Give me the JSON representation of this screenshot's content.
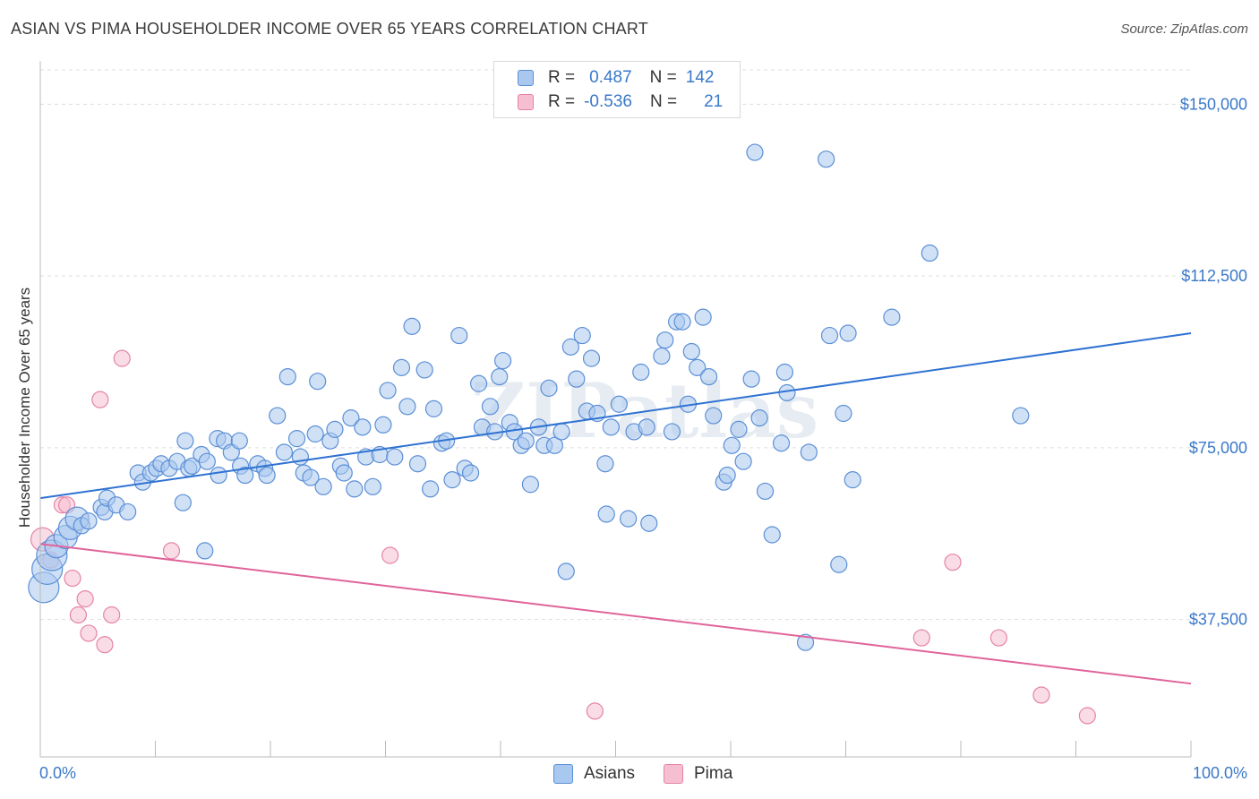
{
  "title": "ASIAN VS PIMA HOUSEHOLDER INCOME OVER 65 YEARS CORRELATION CHART",
  "source": "Source: ZipAtlas.com",
  "watermark": "ZIPatlas",
  "legend": {
    "rows": [
      {
        "r_label": "R =",
        "r_value": "0.487",
        "n_label": "N =",
        "n_value": "142"
      },
      {
        "r_label": "R =",
        "r_value": "-0.536",
        "n_label": "N =",
        "n_value": "21"
      }
    ]
  },
  "bottom_legend": [
    "Asians",
    "Pima"
  ],
  "colors": {
    "asian_fill": "#a9c8ef",
    "asian_stroke": "#5b8fd6",
    "asian_line": "#2f72d2",
    "pima_fill": "#f6bfd1",
    "pima_stroke": "#e584a6",
    "pima_line": "#e0649a",
    "axis_text": "#3a78c9",
    "grid": "#dddddd"
  },
  "chart_data": {
    "type": "scatter",
    "title": "ASIAN VS PIMA HOUSEHOLDER INCOME OVER 65 YEARS CORRELATION CHART",
    "xlabel": "",
    "ylabel": "Householder Income Over 65 years",
    "xlim": [
      0,
      100
    ],
    "ylim": [
      7500,
      157500
    ],
    "x_tick_labels": [
      "0.0%",
      "100.0%"
    ],
    "y_ticks": [
      37500,
      75000,
      112500,
      150000
    ],
    "y_tick_labels": [
      "$37,500",
      "$75,000",
      "$112,500",
      "$150,000"
    ],
    "grid": true,
    "legend_position": "top-center",
    "series": [
      {
        "name": "Asians",
        "r": 0.487,
        "n": 142,
        "trend": [
          [
            0,
            64000
          ],
          [
            100,
            100000
          ]
        ],
        "points": [
          [
            0.3,
            44500,
            3
          ],
          [
            0.6,
            48500,
            3
          ],
          [
            1.0,
            51500,
            3
          ],
          [
            1.4,
            53500,
            2
          ],
          [
            2.2,
            55500,
            2
          ],
          [
            2.6,
            57500,
            2
          ],
          [
            3.2,
            59500,
            2
          ],
          [
            3.6,
            58000,
            1
          ],
          [
            4.2,
            59000,
            1
          ],
          [
            5.3,
            62000,
            1
          ],
          [
            5.6,
            61000,
            1
          ],
          [
            5.8,
            64000,
            1
          ],
          [
            6.6,
            62500,
            1
          ],
          [
            7.6,
            61000,
            1
          ],
          [
            8.5,
            69500,
            1
          ],
          [
            8.9,
            67500,
            1
          ],
          [
            9.6,
            69500,
            1
          ],
          [
            10.1,
            70500,
            1
          ],
          [
            10.5,
            71500,
            1
          ],
          [
            11.2,
            70500,
            1
          ],
          [
            11.9,
            72000,
            1
          ],
          [
            12.4,
            63000,
            1
          ],
          [
            12.6,
            76500,
            1
          ],
          [
            12.9,
            70500,
            1
          ],
          [
            13.2,
            71000,
            1
          ],
          [
            14.0,
            73500,
            1
          ],
          [
            14.5,
            72000,
            1
          ],
          [
            14.3,
            52500,
            1
          ],
          [
            15.5,
            69000,
            1
          ],
          [
            15.4,
            77000,
            1
          ],
          [
            16.0,
            76500,
            1
          ],
          [
            16.6,
            74000,
            1
          ],
          [
            17.4,
            71000,
            1
          ],
          [
            17.3,
            76500,
            1
          ],
          [
            17.8,
            69000,
            1
          ],
          [
            18.9,
            71500,
            1
          ],
          [
            19.5,
            70500,
            1
          ],
          [
            19.7,
            69000,
            1
          ],
          [
            20.6,
            82000,
            1
          ],
          [
            21.2,
            74000,
            1
          ],
          [
            21.5,
            90500,
            1
          ],
          [
            22.3,
            77000,
            1
          ],
          [
            22.6,
            73000,
            1
          ],
          [
            22.9,
            69500,
            1
          ],
          [
            23.5,
            68500,
            1
          ],
          [
            23.9,
            78000,
            1
          ],
          [
            24.1,
            89500,
            1
          ],
          [
            24.6,
            66500,
            1
          ],
          [
            25.2,
            76500,
            1
          ],
          [
            25.6,
            79000,
            1
          ],
          [
            26.1,
            71000,
            1
          ],
          [
            26.4,
            69500,
            1
          ],
          [
            27.0,
            81500,
            1
          ],
          [
            27.3,
            66000,
            1
          ],
          [
            28.0,
            79500,
            1
          ],
          [
            28.3,
            73000,
            1
          ],
          [
            28.9,
            66500,
            1
          ],
          [
            29.5,
            73500,
            1
          ],
          [
            29.8,
            80000,
            1
          ],
          [
            30.2,
            87500,
            1
          ],
          [
            30.8,
            73000,
            1
          ],
          [
            31.4,
            92500,
            1
          ],
          [
            31.9,
            84000,
            1
          ],
          [
            32.3,
            101500,
            1
          ],
          [
            32.8,
            71500,
            1
          ],
          [
            33.4,
            92000,
            1
          ],
          [
            33.9,
            66000,
            1
          ],
          [
            34.2,
            83500,
            1
          ],
          [
            34.9,
            76000,
            1
          ],
          [
            35.3,
            76500,
            1
          ],
          [
            35.8,
            68000,
            1
          ],
          [
            36.4,
            99500,
            1
          ],
          [
            36.9,
            70500,
            1
          ],
          [
            37.4,
            69500,
            1
          ],
          [
            38.1,
            89000,
            1
          ],
          [
            38.4,
            79500,
            1
          ],
          [
            39.1,
            84000,
            1
          ],
          [
            39.5,
            78500,
            1
          ],
          [
            39.9,
            90500,
            1
          ],
          [
            40.2,
            94000,
            1
          ],
          [
            40.8,
            80500,
            1
          ],
          [
            41.2,
            78500,
            1
          ],
          [
            41.8,
            75500,
            1
          ],
          [
            42.2,
            76500,
            1
          ],
          [
            42.6,
            67000,
            1
          ],
          [
            43.3,
            79500,
            1
          ],
          [
            43.8,
            75500,
            1
          ],
          [
            44.2,
            88000,
            1
          ],
          [
            44.7,
            75500,
            1
          ],
          [
            45.3,
            78500,
            1
          ],
          [
            45.7,
            48000,
            1
          ],
          [
            46.1,
            97000,
            1
          ],
          [
            46.6,
            90000,
            1
          ],
          [
            47.1,
            99500,
            1
          ],
          [
            47.5,
            83000,
            1
          ],
          [
            47.9,
            94500,
            1
          ],
          [
            48.4,
            82500,
            1
          ],
          [
            49.1,
            71500,
            1
          ],
          [
            49.6,
            79500,
            1
          ],
          [
            49.2,
            60500,
            1
          ],
          [
            50.3,
            84500,
            1
          ],
          [
            51.1,
            59500,
            1
          ],
          [
            51.6,
            78500,
            1
          ],
          [
            52.2,
            91500,
            1
          ],
          [
            52.7,
            79500,
            1
          ],
          [
            52.9,
            58500,
            1
          ],
          [
            54.0,
            95000,
            1
          ],
          [
            54.3,
            98500,
            1
          ],
          [
            54.9,
            78500,
            1
          ],
          [
            55.3,
            102500,
            1
          ],
          [
            55.8,
            102500,
            1
          ],
          [
            56.3,
            84500,
            1
          ],
          [
            56.6,
            96000,
            1
          ],
          [
            57.1,
            92500,
            1
          ],
          [
            57.6,
            103500,
            1
          ],
          [
            58.1,
            90500,
            1
          ],
          [
            58.5,
            82000,
            1
          ],
          [
            59.4,
            67500,
            1
          ],
          [
            59.7,
            69000,
            1
          ],
          [
            60.1,
            75500,
            1
          ],
          [
            60.7,
            79000,
            1
          ],
          [
            61.1,
            72000,
            1
          ],
          [
            61.8,
            90000,
            1
          ],
          [
            62.1,
            139500,
            1
          ],
          [
            62.5,
            81500,
            1
          ],
          [
            63.0,
            65500,
            1
          ],
          [
            63.6,
            56000,
            1
          ],
          [
            64.4,
            76000,
            1
          ],
          [
            64.7,
            91500,
            1
          ],
          [
            64.9,
            87000,
            1
          ],
          [
            66.8,
            74000,
            1
          ],
          [
            68.3,
            138000,
            1
          ],
          [
            68.6,
            99500,
            1
          ],
          [
            69.4,
            49500,
            1
          ],
          [
            69.8,
            82500,
            1
          ],
          [
            70.2,
            100000,
            1
          ],
          [
            70.6,
            68000,
            1
          ],
          [
            66.5,
            32500,
            1
          ],
          [
            74.0,
            103500,
            1
          ],
          [
            77.3,
            117500,
            1
          ],
          [
            85.2,
            82000,
            1
          ]
        ]
      },
      {
        "name": "Pima",
        "r": -0.536,
        "n": 21,
        "trend": [
          [
            0,
            54000
          ],
          [
            100,
            23500
          ]
        ],
        "points": [
          [
            0.2,
            55000,
            2
          ],
          [
            0.9,
            50500,
            1
          ],
          [
            1.9,
            62500,
            1
          ],
          [
            2.3,
            62500,
            1
          ],
          [
            2.8,
            46500,
            1
          ],
          [
            3.3,
            38500,
            1
          ],
          [
            3.9,
            42000,
            1
          ],
          [
            4.2,
            34500,
            1
          ],
          [
            5.2,
            85500,
            1
          ],
          [
            5.6,
            32000,
            1
          ],
          [
            6.2,
            38500,
            1
          ],
          [
            7.1,
            94500,
            1
          ],
          [
            11.4,
            52500,
            1
          ],
          [
            30.4,
            51500,
            1
          ],
          [
            48.2,
            17500,
            1
          ],
          [
            76.6,
            33500,
            1
          ],
          [
            79.3,
            50000,
            1
          ],
          [
            83.3,
            33500,
            1
          ],
          [
            87.0,
            21000,
            1
          ],
          [
            91.0,
            16500,
            1
          ]
        ]
      }
    ]
  }
}
